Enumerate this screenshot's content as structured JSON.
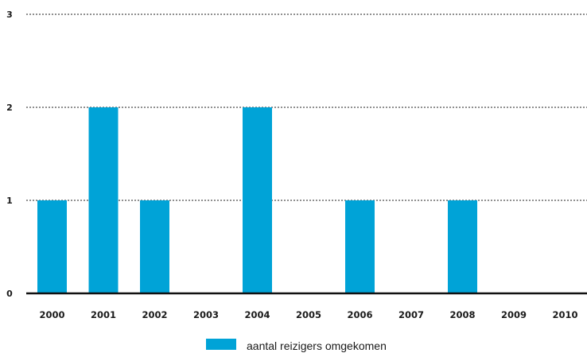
{
  "chart_data": {
    "type": "bar",
    "title": "",
    "xlabel": "",
    "ylabel": "",
    "categories": [
      "2000",
      "2001",
      "2002",
      "2003",
      "2004",
      "2005",
      "2006",
      "2007",
      "2008",
      "2009",
      "2010"
    ],
    "series": [
      {
        "name": "aantal reizigers omgekomen",
        "values": [
          1,
          2,
          1,
          0,
          2,
          0,
          1,
          0,
          1,
          0,
          0
        ],
        "color": "#00a3d7"
      }
    ],
    "ylim": [
      0,
      3
    ],
    "yticks": [
      "0",
      "1",
      "2",
      "3"
    ],
    "grid": "horizontal-dotted",
    "legend_position": "bottom-center"
  }
}
